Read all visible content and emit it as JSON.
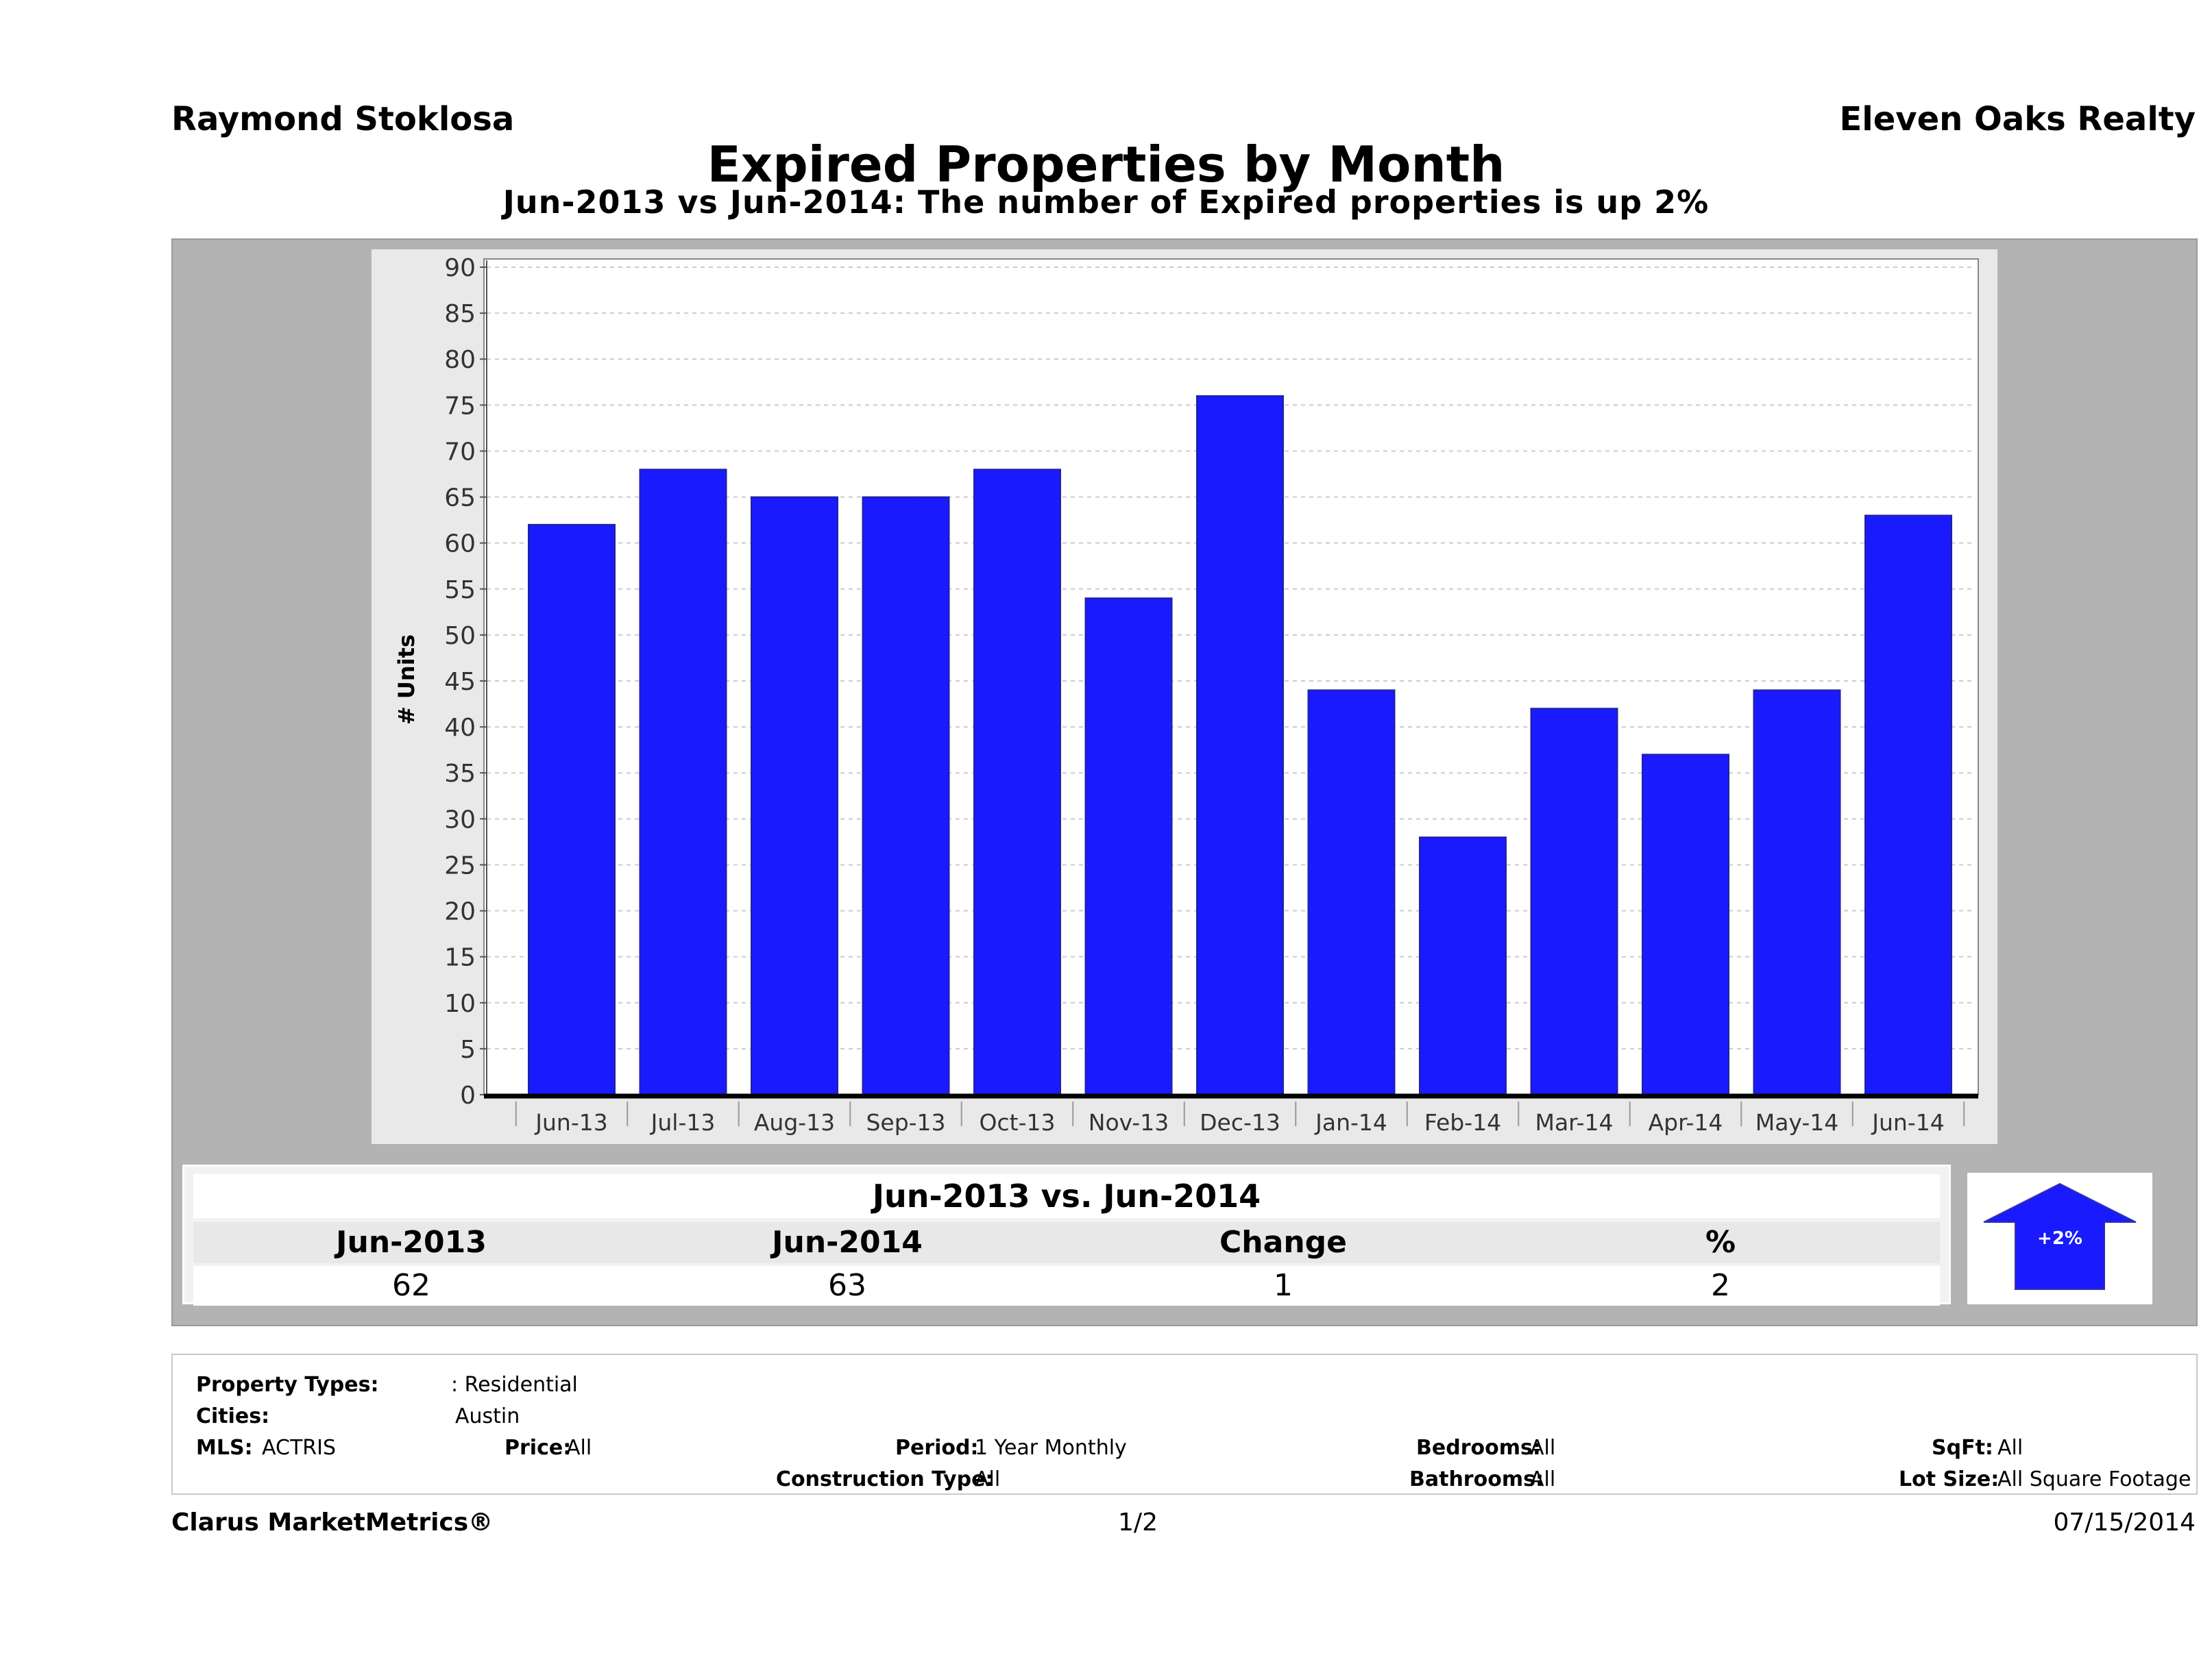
{
  "header": {
    "agent": "Raymond Stoklosa",
    "broker": "Eleven Oaks Realty",
    "title": "Expired Properties by Month",
    "subtitle": "Jun-2013 vs Jun-2014: The number of Expired  properties is up 2%"
  },
  "chart_data": {
    "type": "bar",
    "categories": [
      "Jun-13",
      "Jul-13",
      "Aug-13",
      "Sep-13",
      "Oct-13",
      "Nov-13",
      "Dec-13",
      "Jan-14",
      "Feb-14",
      "Mar-14",
      "Apr-14",
      "May-14",
      "Jun-14"
    ],
    "values": [
      62,
      68,
      65,
      65,
      68,
      54,
      76,
      44,
      28,
      42,
      37,
      44,
      63
    ],
    "ylabel": "# Units",
    "ylim": [
      0,
      90
    ],
    "yticks": [
      0,
      5,
      10,
      15,
      20,
      25,
      30,
      35,
      40,
      45,
      50,
      55,
      60,
      65,
      70,
      75,
      80,
      85,
      90
    ],
    "grid": true,
    "bar_color": "#1a1aff"
  },
  "comparison": {
    "title": "Jun-2013 vs. Jun-2014",
    "headers": [
      "Jun-2013",
      "Jun-2014",
      "Change",
      "%"
    ],
    "values": [
      "62",
      "63",
      "1",
      "2"
    ],
    "badge": "+2%",
    "badge_color": "#1a1aff",
    "direction": "up"
  },
  "details": {
    "property_types_label": "Property Types:",
    "property_types": ": Residential",
    "cities_label": "Cities:",
    "cities": "Austin",
    "mls_label": "MLS:",
    "mls": "ACTRIS",
    "price_label": "Price:",
    "price": "All",
    "period_label": "Period:",
    "period": "1 Year Monthly",
    "construction_label": "Construction Type:",
    "construction": "All",
    "bedrooms_label": "Bedrooms:",
    "bedrooms": "All",
    "bathrooms_label": "Bathrooms:",
    "bathrooms": "All",
    "sqft_label": "SqFt:",
    "sqft": "All",
    "lotsize_label": "Lot Size:",
    "lotsize": "All Square Footage"
  },
  "footer": {
    "brand": "Clarus MarketMetrics®",
    "page": "1/2",
    "date": "07/15/2014"
  }
}
